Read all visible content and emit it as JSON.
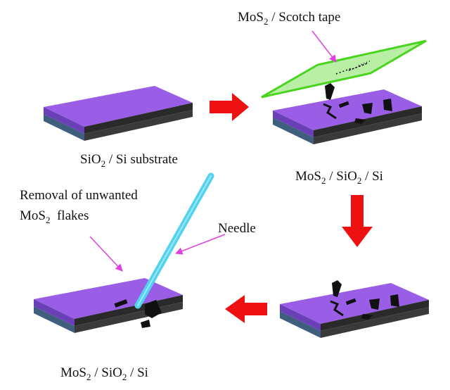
{
  "labels": {
    "tape_main": "MoS",
    "tape_sub": "2",
    "tape_rest": " / Scotch tape",
    "substrate_main": "SiO",
    "substrate_sub": "2",
    "substrate_rest": " / Si substrate",
    "stack_a_1": "MoS",
    "stack_a_2": "2",
    "stack_a_3": " / SiO",
    "stack_a_4": "2",
    "stack_a_5": " / Si",
    "removal_line1": "Removal of unwanted",
    "removal_main": "MoS",
    "removal_sub": "2",
    "removal_rest": "  flakes",
    "needle": "Needle",
    "stack_b_1": "MoS",
    "stack_b_2": "2",
    "stack_b_3": " / SiO",
    "stack_b_4": "2",
    "stack_b_5": " / Si"
  },
  "colors": {
    "substrate_top": "#9a5ee6",
    "substrate_sio2_side": "#6b3fb8",
    "substrate_si_side": "#3f5f7f",
    "substrate_right_dark": "#242424",
    "tape_fill": "#b9efa5",
    "tape_edge": "#49d41e",
    "needle": "#52d2ef",
    "arrow": "#ee1111",
    "pointer": "#e040e0",
    "flake": "#111111"
  }
}
